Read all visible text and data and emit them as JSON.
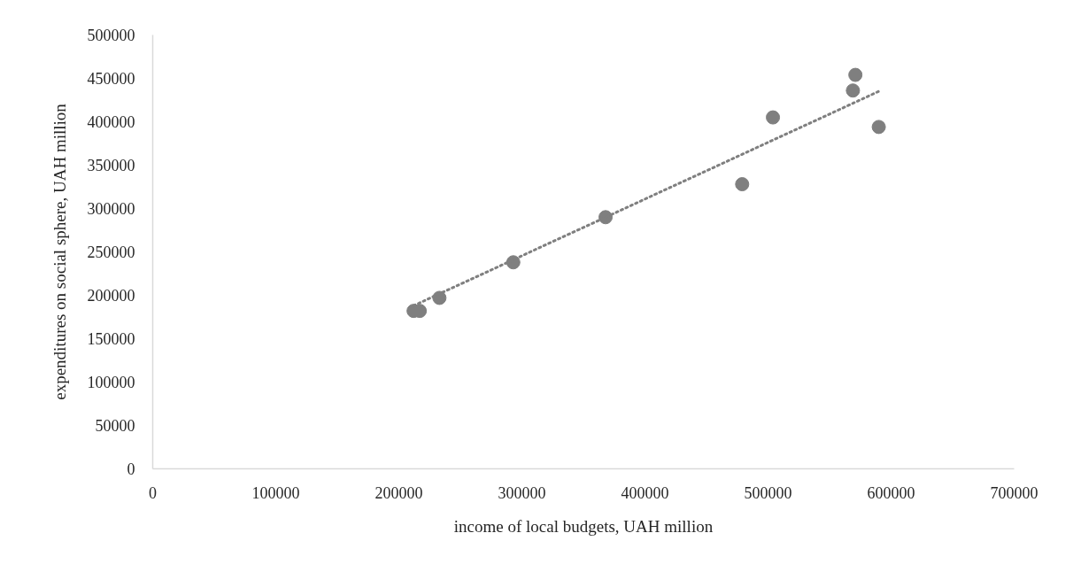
{
  "chart_data": {
    "type": "scatter",
    "xlabel": "income of local budgets, UAH million",
    "ylabel": "expenditures on social sphere, UAH million",
    "xlim": [
      0,
      700000
    ],
    "xticks": [
      0,
      100000,
      200000,
      300000,
      400000,
      500000,
      600000,
      700000
    ],
    "ylim": [
      0,
      500000
    ],
    "yticks": [
      0,
      50000,
      100000,
      150000,
      200000,
      250000,
      300000,
      350000,
      400000,
      450000,
      500000
    ],
    "grid": false,
    "series": [
      {
        "color": "#7f7f7f",
        "marker": "circle",
        "x": [
          212000,
          217000,
          233000,
          293000,
          368000,
          479000,
          504000,
          571000,
          569000,
          590000
        ],
        "values": [
          182000,
          182000,
          197000,
          238000,
          290000,
          328000,
          405000,
          454000,
          436000,
          394000
        ]
      },
      {
        "type": "line",
        "color": "#7f7f7f",
        "line_style": "dotted",
        "x": [
          212000,
          590000
        ],
        "values": [
          188000,
          435000
        ]
      }
    ]
  }
}
